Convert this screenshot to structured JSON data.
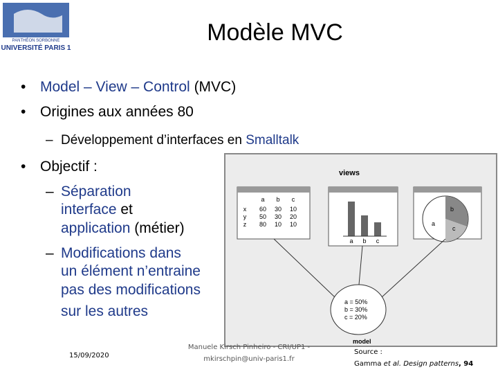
{
  "logo": {
    "top": "PANTHÉON SORBONNE",
    "bottom": "UNIVERSITÉ PARIS 1"
  },
  "title": "Modèle MVC",
  "bullets": [
    {
      "parts": [
        "Model – View – Control",
        " (MVC)"
      ]
    },
    {
      "parts": [
        "Origines aux années 80"
      ]
    },
    {
      "parts": [
        "Développement d’interfaces en ",
        "Smalltalk"
      ]
    },
    {
      "parts": [
        "Objectif :"
      ]
    },
    {
      "parts": [
        "Séparation",
        "interface",
        " et",
        "application",
        " (métier)"
      ]
    },
    {
      "parts": [
        "Modifications dans",
        "un élément n’entraine",
        "pas des modifications",
        "sur les autres"
      ]
    }
  ],
  "figure": {
    "views": "views",
    "model": "model",
    "table": {
      "header": [
        "a",
        "b",
        "c"
      ],
      "rows": [
        [
          "x",
          "60",
          "30",
          "10"
        ],
        [
          "y",
          "50",
          "30",
          "20"
        ],
        [
          "z",
          "80",
          "10",
          "10"
        ]
      ]
    },
    "bar_labels": [
      "a",
      "b",
      "c"
    ],
    "pie_labels": [
      "a",
      "b",
      "c"
    ],
    "model_lines": [
      "a = 50%",
      "b = 30%",
      "c = 20%"
    ]
  },
  "footer": {
    "date": "15/09/2020",
    "author": [
      "Manuele Kirsch Pinheiro - CRI/UP1 -",
      "mkirschpin@univ-paris1.fr"
    ],
    "source": [
      "Source :",
      "Gamma",
      " et al.",
      " Design patterns",
      ", 94"
    ]
  }
}
